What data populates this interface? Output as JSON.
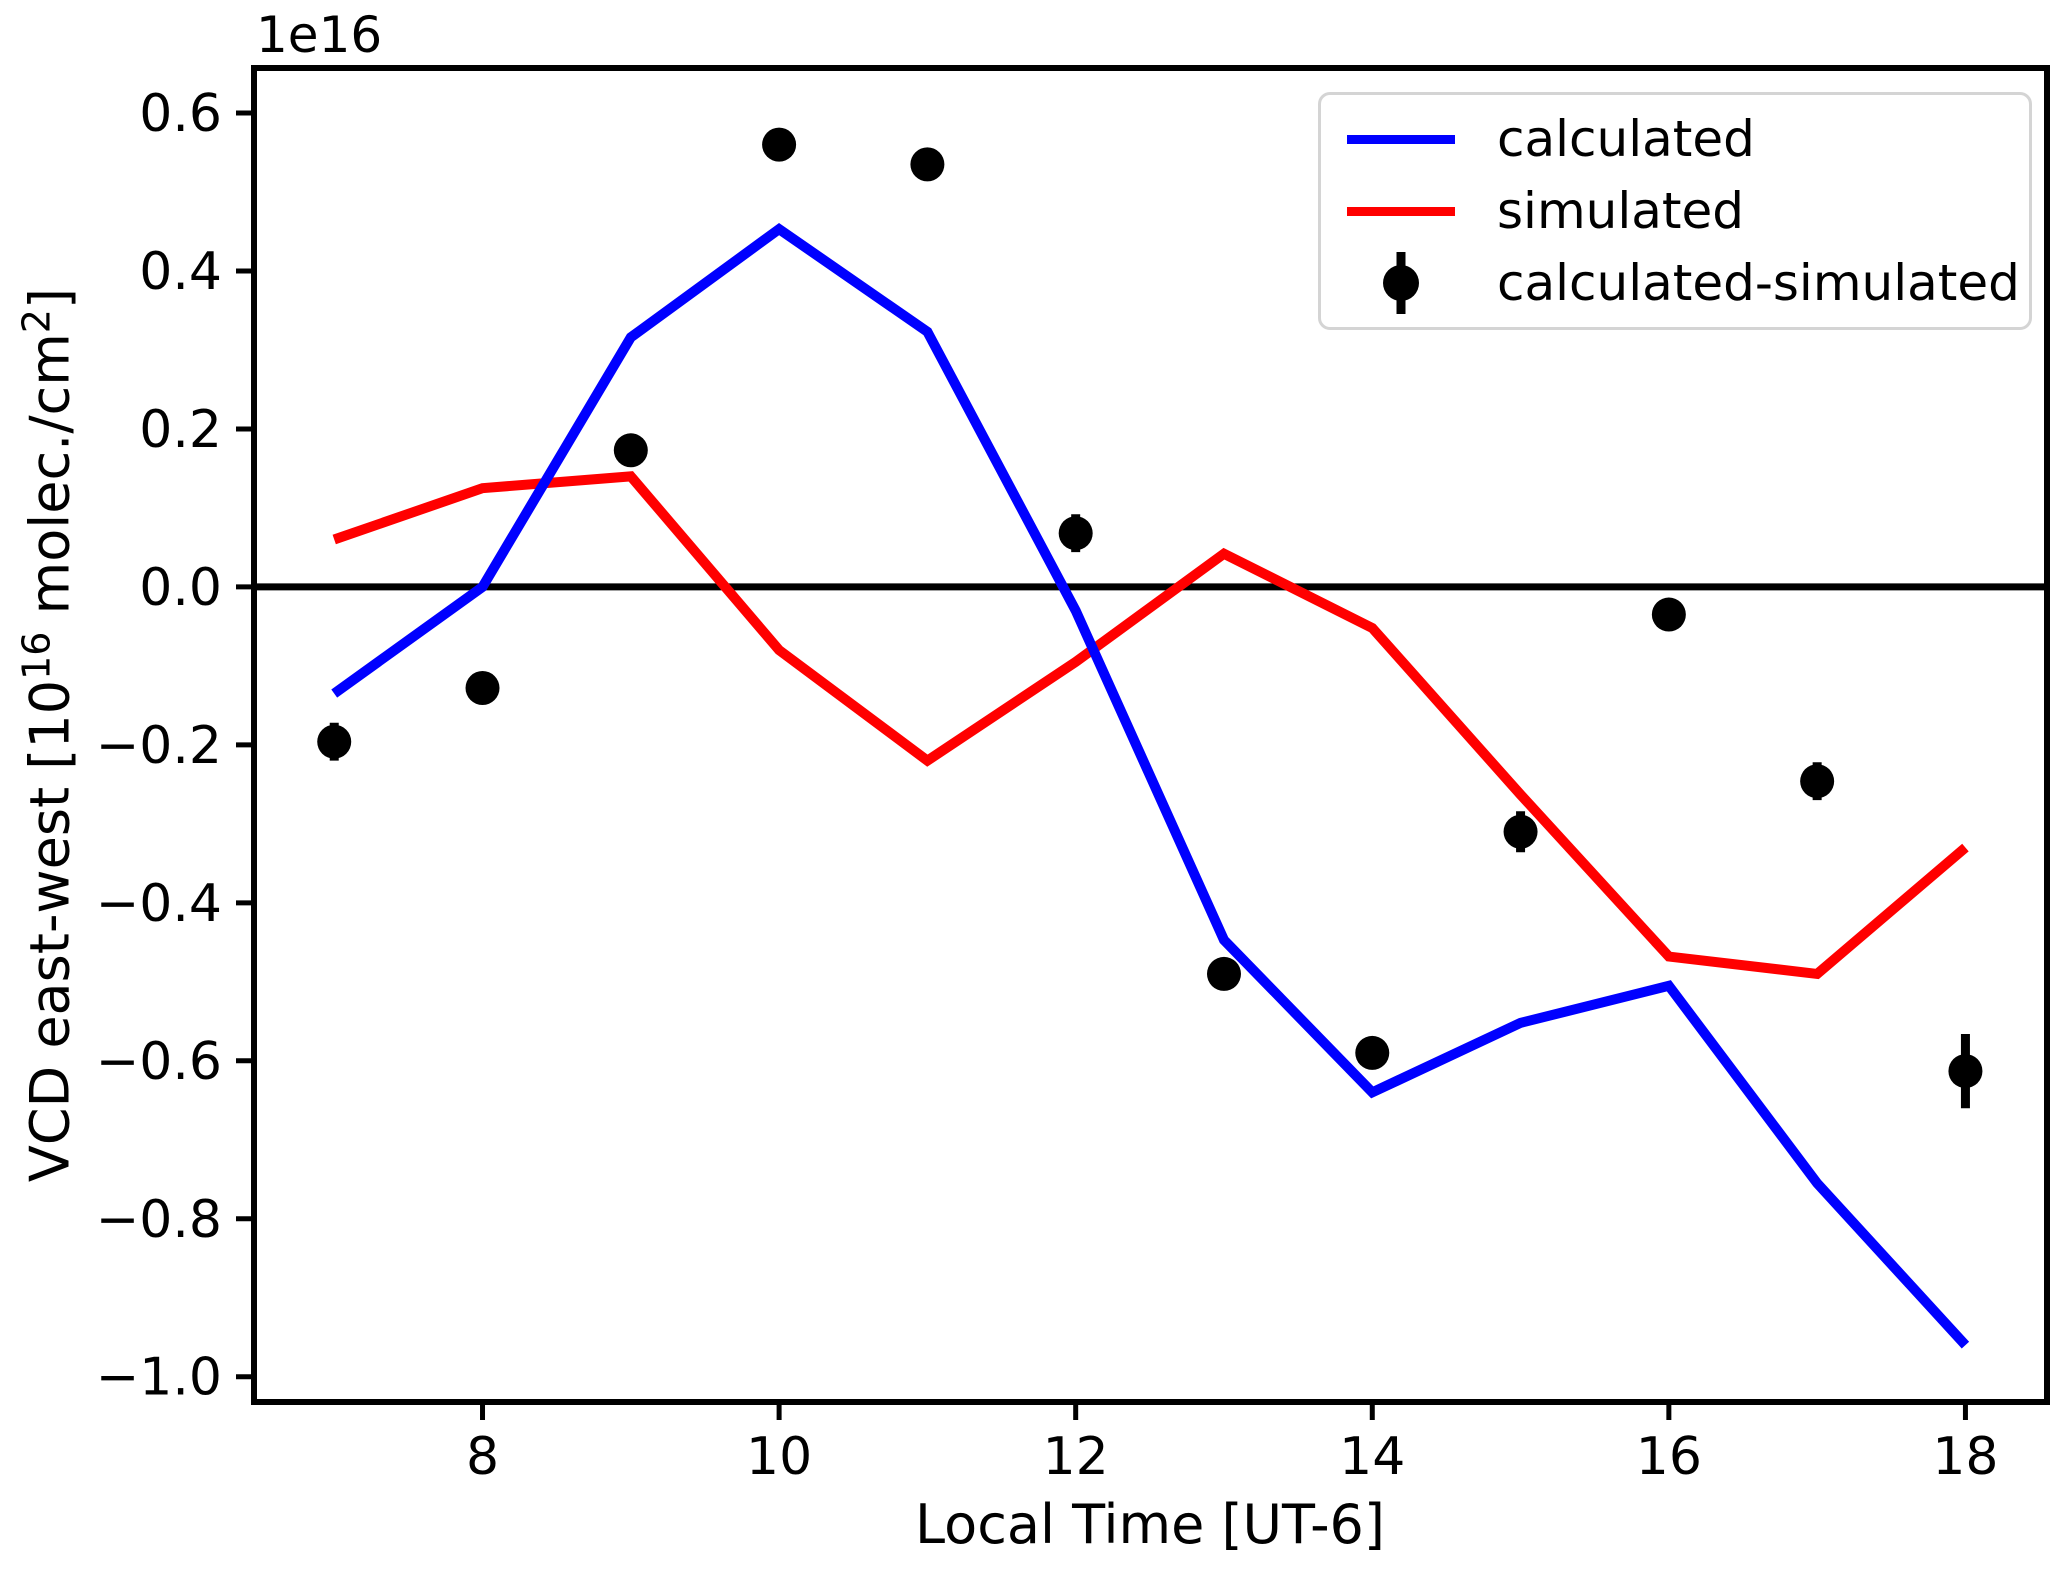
{
  "figure": {
    "offset_text": "1e16",
    "xlabel": "Local Time [UT-6]",
    "ylabel_parts": {
      "pre": "VCD east-west [10",
      "sup1": "16",
      "mid": " molec./cm",
      "sup2": "2",
      "post": "]"
    },
    "background": "#ffffff",
    "text_color": "#000000"
  },
  "legend": {
    "position": "upper right",
    "entries": [
      {
        "label": "calculated",
        "color": "#0000ff",
        "type": "line"
      },
      {
        "label": "simulated",
        "color": "#ff0000",
        "type": "line"
      },
      {
        "label": "calculated-simulated",
        "color": "#000000",
        "type": "marker-errorbar"
      }
    ]
  },
  "chart_data": {
    "type": "line",
    "title": "",
    "xlabel": "Local Time [UT-6]",
    "ylabel": "VCD east-west [10^16 molec./cm^2]",
    "offset_text": "1e16",
    "grid": false,
    "zero_line": true,
    "legend_position": "upper right",
    "xlim": [
      6.459,
      18.55
    ],
    "ylim": [
      -1.032,
      0.657
    ],
    "x_ticks": [
      {
        "v": 8,
        "label": "8"
      },
      {
        "v": 10,
        "label": "10"
      },
      {
        "v": 12,
        "label": "12"
      },
      {
        "v": 14,
        "label": "14"
      },
      {
        "v": 16,
        "label": "16"
      },
      {
        "v": 18,
        "label": "18"
      }
    ],
    "y_ticks": [
      {
        "v": 0.6,
        "label": "0.6"
      },
      {
        "v": 0.4,
        "label": "0.4"
      },
      {
        "v": 0.2,
        "label": "0.2"
      },
      {
        "v": 0.0,
        "label": "0.0"
      },
      {
        "v": -0.2,
        "label": "−0.2"
      },
      {
        "v": -0.4,
        "label": "−0.4"
      },
      {
        "v": -0.6,
        "label": "−0.6"
      },
      {
        "v": -0.8,
        "label": "−0.8"
      },
      {
        "v": -1.0,
        "label": "−1.0"
      }
    ],
    "x": [
      7,
      8,
      9,
      10,
      11,
      12,
      13,
      14,
      15,
      16,
      17,
      18
    ],
    "series": [
      {
        "name": "calculated",
        "style": "line",
        "color": "#0000ff",
        "values": [
          -0.135,
          0.0,
          0.316,
          0.453,
          0.323,
          -0.03,
          -0.447,
          -0.64,
          -0.552,
          -0.505,
          -0.755,
          -0.96
        ]
      },
      {
        "name": "simulated",
        "style": "line",
        "color": "#ff0000",
        "values": [
          0.06,
          0.125,
          0.14,
          -0.08,
          -0.22,
          -0.095,
          0.042,
          -0.052,
          -0.263,
          -0.468,
          -0.49,
          -0.33
        ]
      },
      {
        "name": "calculated-simulated",
        "style": "scatter-errorbar",
        "color": "#000000",
        "values": [
          -0.196,
          -0.128,
          0.173,
          0.56,
          0.535,
          0.068,
          -0.49,
          -0.59,
          -0.31,
          -0.035,
          -0.246,
          -0.613
        ],
        "errors": [
          0.024,
          0.016,
          0.018,
          0.02,
          0.02,
          0.024,
          0.018,
          0.02,
          0.026,
          0.016,
          0.024,
          0.047
        ]
      }
    ],
    "units_note": "y values in units of 1e16 molec./cm^2"
  }
}
